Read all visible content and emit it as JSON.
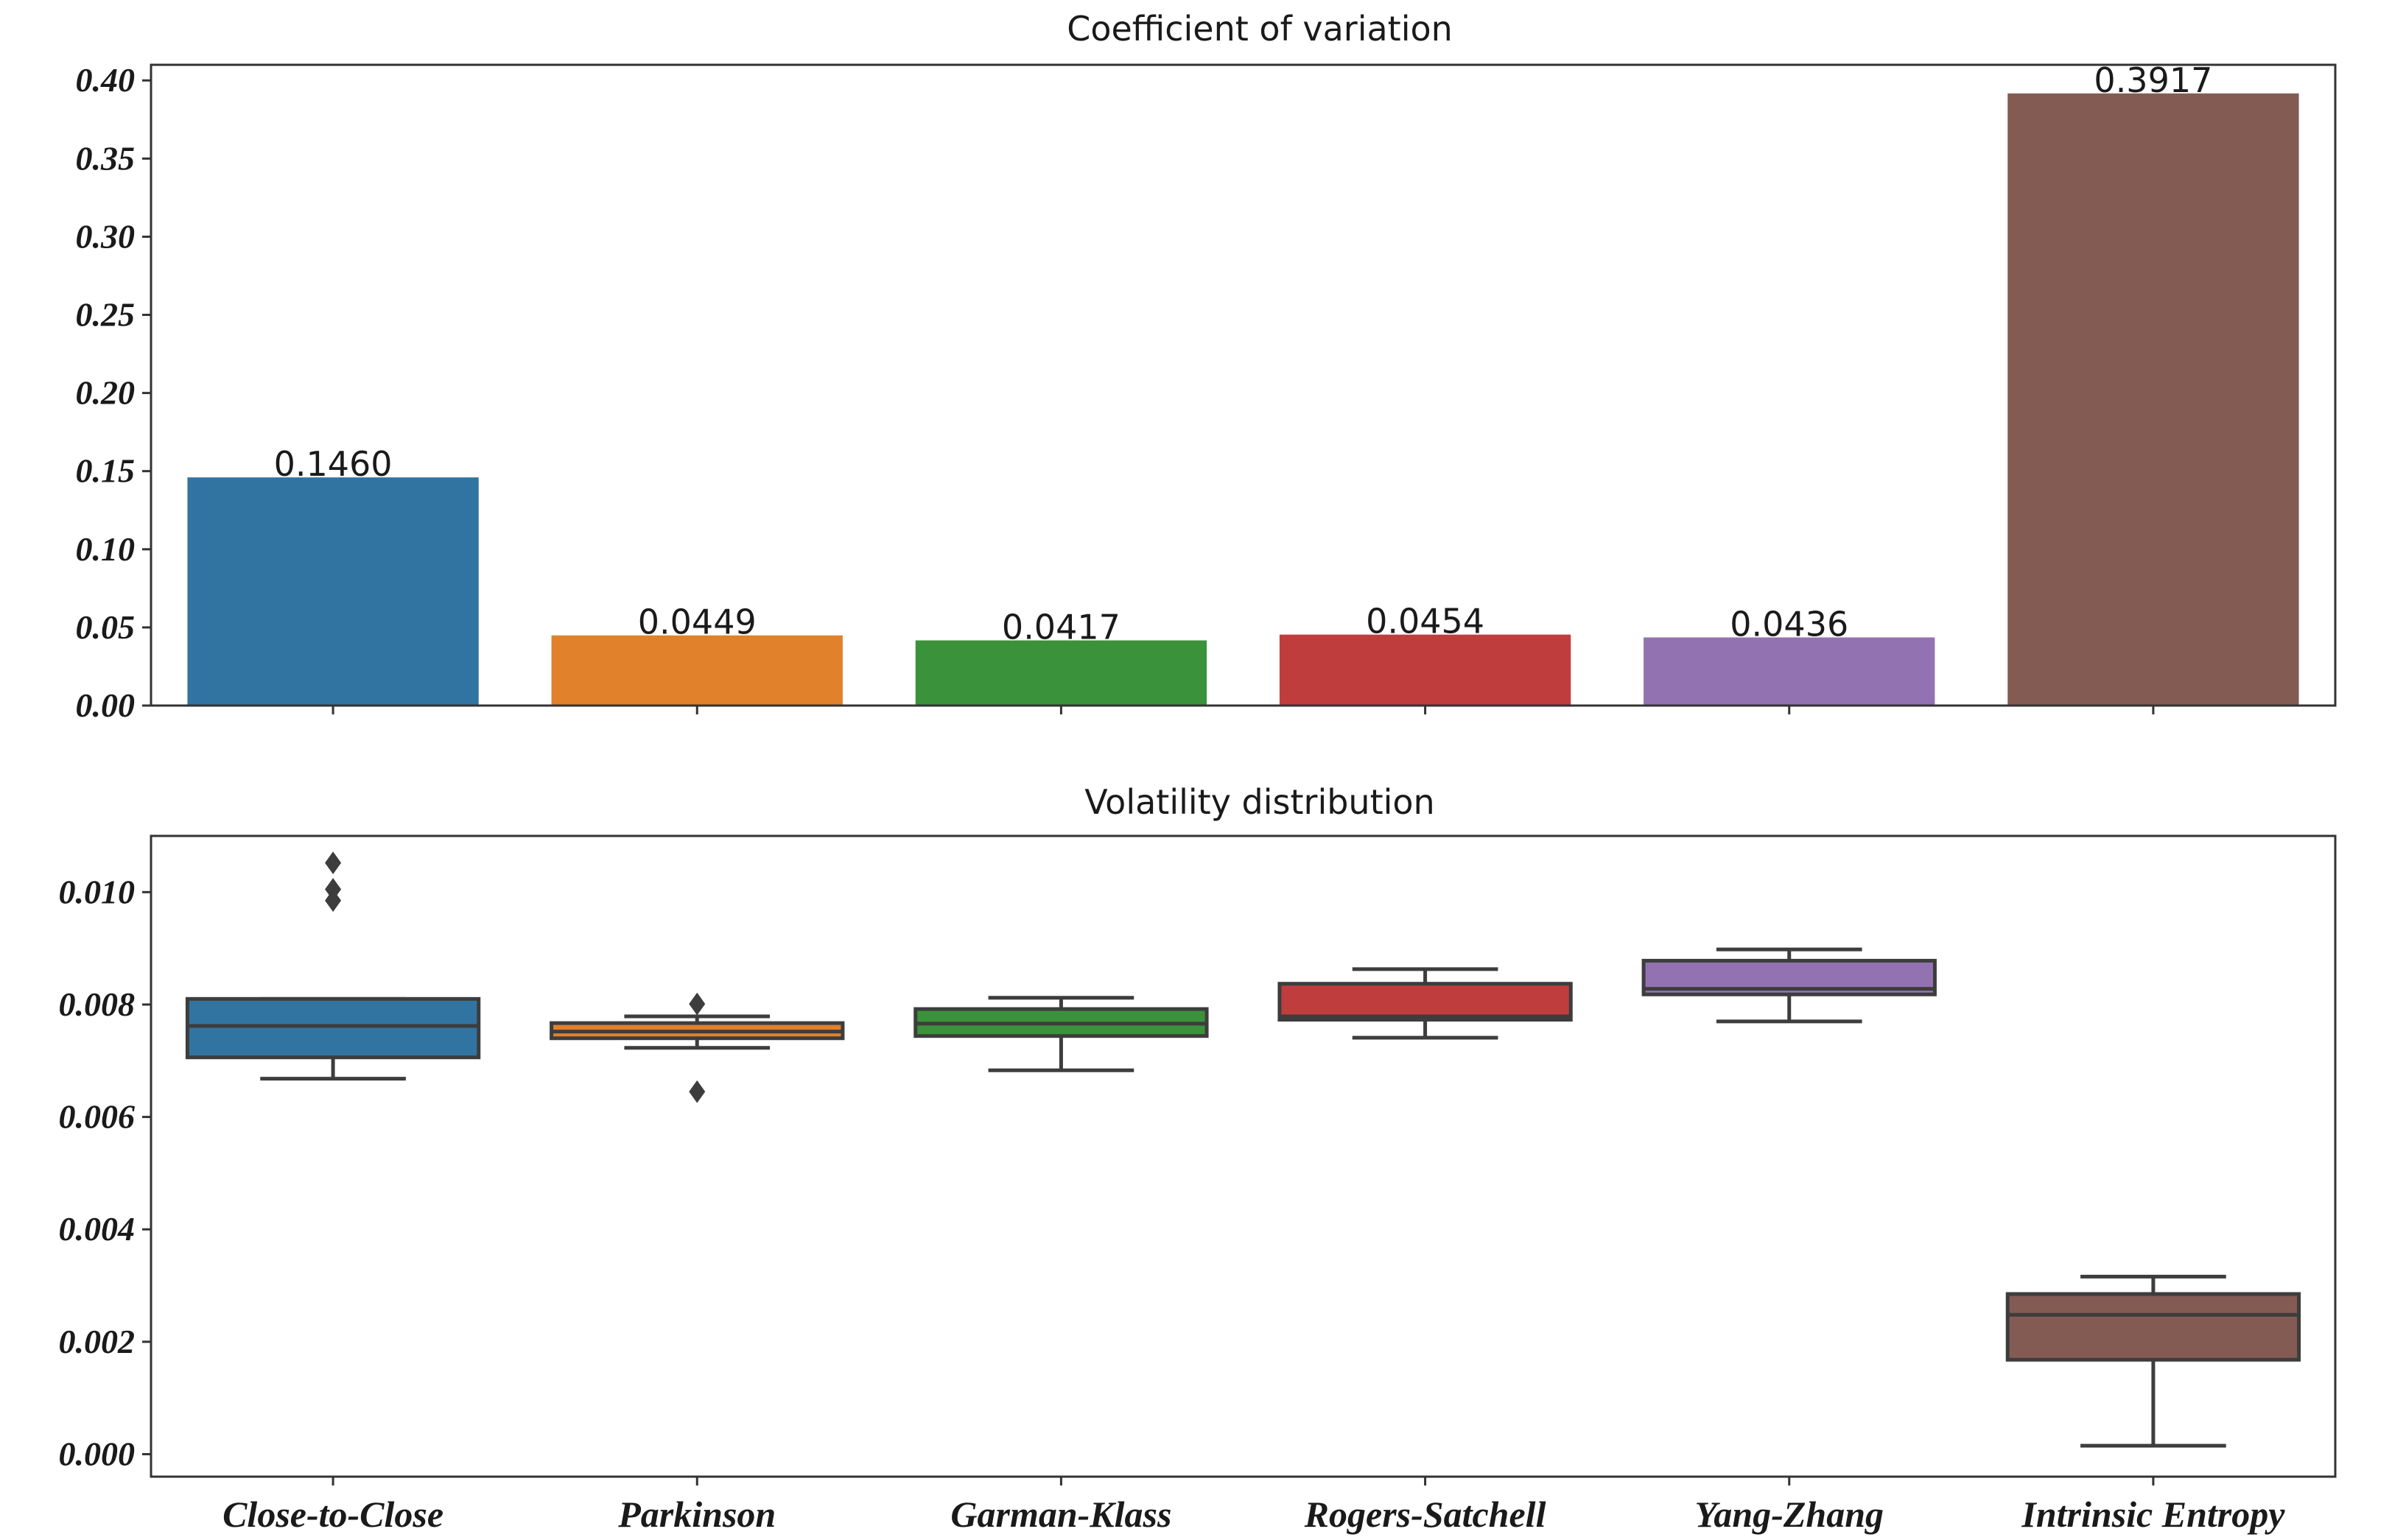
{
  "chart_data": [
    {
      "type": "bar",
      "title": "Coefficient of variation",
      "xlabel": "",
      "ylabel": "",
      "categories": [
        "Close-to-Close",
        "Parkinson",
        "Garman-Klass",
        "Rogers-Satchell",
        "Yang-Zhang",
        "Intrinsic Entropy"
      ],
      "values": [
        0.146,
        0.0449,
        0.0417,
        0.0454,
        0.0436,
        0.3917
      ],
      "value_labels": [
        "0.1460",
        "0.0449",
        "0.0417",
        "0.0454",
        "0.0436",
        "0.3917"
      ],
      "colors": [
        "#3274a1",
        "#e1812c",
        "#3a923a",
        "#c03d3e",
        "#9372b2",
        "#845b53"
      ],
      "ylim": [
        0,
        0.41
      ],
      "yticks": [
        0.0,
        0.05,
        0.1,
        0.15,
        0.2,
        0.25,
        0.3,
        0.35,
        0.4
      ],
      "ytick_labels": [
        "0.00",
        "0.05",
        "0.10",
        "0.15",
        "0.20",
        "0.25",
        "0.30",
        "0.35",
        "0.40"
      ]
    },
    {
      "type": "box",
      "title": "Volatility distribution",
      "xlabel": "",
      "ylabel": "",
      "categories": [
        "Close-to-Close",
        "Parkinson",
        "Garman-Klass",
        "Rogers-Satchell",
        "Yang-Zhang",
        "Intrinsic Entropy"
      ],
      "colors": [
        "#3274a1",
        "#e1812c",
        "#3a923a",
        "#c03d3e",
        "#9372b2",
        "#845b53"
      ],
      "boxes": [
        {
          "whisker_low": 0.00668,
          "q1": 0.00706,
          "median": 0.00762,
          "q3": 0.0081,
          "whisker_high": 0.0081,
          "outliers": [
            0.00985,
            0.01005,
            0.01052
          ]
        },
        {
          "whisker_low": 0.00723,
          "q1": 0.0074,
          "median": 0.00752,
          "q3": 0.00767,
          "whisker_high": 0.00779,
          "outliers": [
            0.00801,
            0.00645
          ]
        },
        {
          "whisker_low": 0.00683,
          "q1": 0.00744,
          "median": 0.00766,
          "q3": 0.00792,
          "whisker_high": 0.00812,
          "outliers": []
        },
        {
          "whisker_low": 0.00741,
          "q1": 0.00773,
          "median": 0.00779,
          "q3": 0.00837,
          "whisker_high": 0.00863,
          "outliers": []
        },
        {
          "whisker_low": 0.0077,
          "q1": 0.00818,
          "median": 0.00828,
          "q3": 0.00878,
          "whisker_high": 0.00898,
          "outliers": []
        },
        {
          "whisker_low": 0.00015,
          "q1": 0.00168,
          "median": 0.00248,
          "q3": 0.00285,
          "whisker_high": 0.00316,
          "outliers": []
        }
      ],
      "ylim": [
        -0.0004,
        0.011
      ],
      "yticks": [
        0.0,
        0.002,
        0.004,
        0.006,
        0.008,
        0.01
      ],
      "ytick_labels": [
        "0.000",
        "0.002",
        "0.004",
        "0.006",
        "0.008",
        "0.010"
      ]
    }
  ]
}
